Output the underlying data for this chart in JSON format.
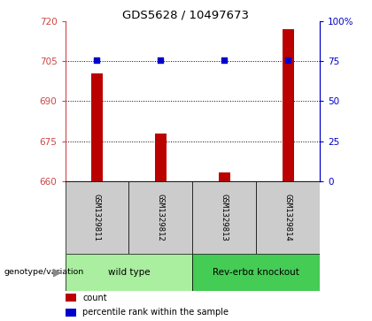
{
  "title": "GDS5628 / 10497673",
  "samples": [
    "GSM1329811",
    "GSM1329812",
    "GSM1329813",
    "GSM1329814"
  ],
  "bar_values": [
    700.5,
    678.0,
    663.5,
    717.0
  ],
  "percentile_values": [
    75.5,
    75.5,
    75.5,
    75.5
  ],
  "ylim_left": [
    660,
    720
  ],
  "ylim_right": [
    0,
    100
  ],
  "yticks_left": [
    660,
    675,
    690,
    705,
    720
  ],
  "yticks_right": [
    0,
    25,
    50,
    75,
    100
  ],
  "ytick_labels_right": [
    "0",
    "25",
    "50",
    "75",
    "100%"
  ],
  "hlines": [
    705,
    690,
    675
  ],
  "bar_color": "#bb0000",
  "dot_color": "#0000cc",
  "groups": [
    {
      "label": "wild type",
      "samples": [
        0,
        1
      ],
      "color": "#aaeea0"
    },
    {
      "label": "Rev-erbα knockout",
      "samples": [
        2,
        3
      ],
      "color": "#44cc55"
    }
  ],
  "group_row_label": "genotype/variation",
  "legend_items": [
    {
      "color": "#bb0000",
      "label": "count"
    },
    {
      "color": "#0000cc",
      "label": "percentile rank within the sample"
    }
  ],
  "bar_width": 0.18,
  "tick_color_left": "#cc4444",
  "tick_color_right": "#0000cc",
  "title_fontsize": 9.5
}
